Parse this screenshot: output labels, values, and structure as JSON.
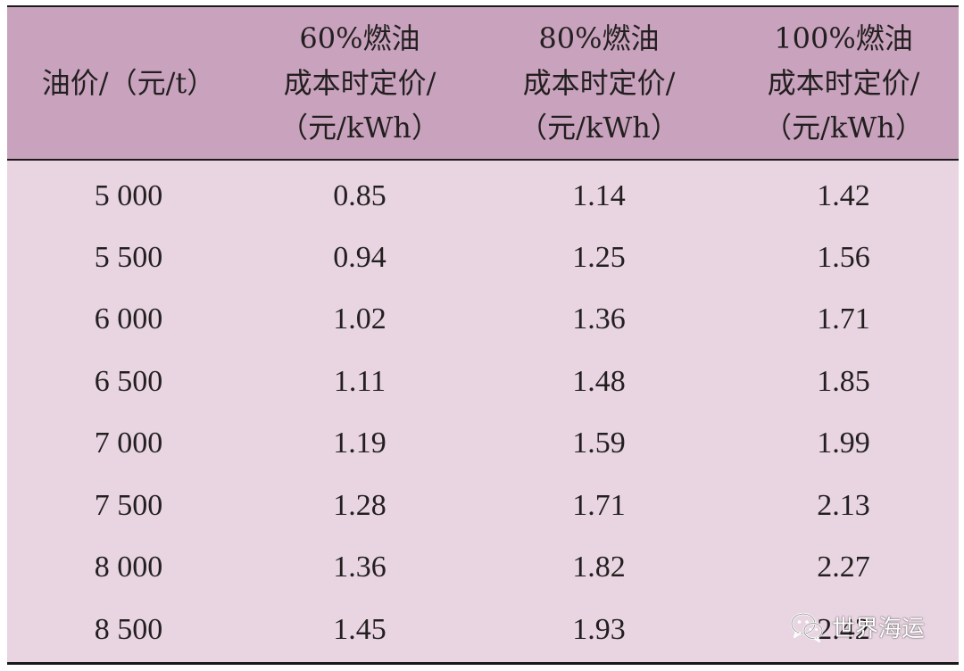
{
  "table": {
    "headers": [
      [
        "油价/（元/t）"
      ],
      [
        "60%燃油",
        "成本时定价/",
        "（元/kWh）"
      ],
      [
        "80%燃油",
        "成本时定价/",
        "（元/kWh）"
      ],
      [
        "100%燃油",
        "成本时定价/",
        "（元/kWh）"
      ]
    ],
    "rows": [
      [
        "5 000",
        "0.85",
        "1.14",
        "1.42"
      ],
      [
        "5 500",
        "0.94",
        "1.25",
        "1.56"
      ],
      [
        "6 000",
        "1.02",
        "1.36",
        "1.71"
      ],
      [
        "6 500",
        "1.11",
        "1.48",
        "1.85"
      ],
      [
        "7 000",
        "1.19",
        "1.59",
        "1.99"
      ],
      [
        "7 500",
        "1.28",
        "1.71",
        "2.13"
      ],
      [
        "8 000",
        "1.36",
        "1.82",
        "2.27"
      ],
      [
        "8 500",
        "1.45",
        "1.93",
        "2.42"
      ]
    ]
  },
  "watermark": {
    "icon": "wechat-icon",
    "text": "世界海运"
  },
  "colors": {
    "header_bg": "#c9a3bd",
    "body_bg": "#e8d5e1",
    "rule": "#1a1a1a",
    "text": "#231f20"
  }
}
